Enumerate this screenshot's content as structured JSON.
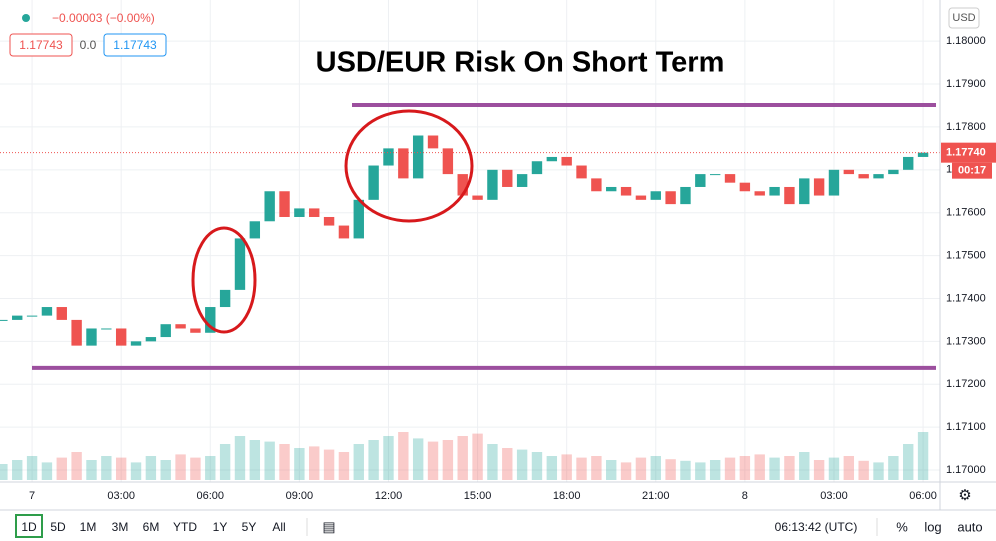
{
  "header": {
    "change": "−0.00003 (−0.00%)",
    "sell": "1.17743",
    "spread": "0.0",
    "buy": "1.17743",
    "currency": "USD"
  },
  "chart_data": {
    "type": "candlestick",
    "title": "USD/EUR Risk On Short Term",
    "x": [
      -1,
      -0.5,
      0,
      0.5,
      1,
      1.5,
      2,
      2.5,
      3,
      3.5,
      4,
      4.5,
      5,
      5.5,
      6,
      6.5,
      7,
      7.5,
      8,
      8.5,
      9,
      9.5,
      10,
      10.5,
      11,
      11.5,
      12,
      12.5,
      13,
      13.5,
      14,
      14.5,
      15,
      15.5,
      16,
      16.5,
      17,
      17.5,
      18,
      18.5,
      19,
      19.5,
      20,
      20.5,
      21,
      21.5,
      22,
      22.5,
      23,
      23.5,
      24,
      24.5,
      25,
      25.5,
      26,
      26.5,
      27,
      27.5,
      28,
      28.5,
      29,
      29.5,
      30
    ],
    "values": [
      1.1735,
      1.1736,
      1.1736,
      1.1738,
      1.1735,
      1.1729,
      1.1733,
      1.1733,
      1.1729,
      1.173,
      1.1731,
      1.1734,
      1.1733,
      1.1732,
      1.1738,
      1.1742,
      1.1754,
      1.1758,
      1.1765,
      1.1759,
      1.1761,
      1.1759,
      1.1757,
      1.1754,
      1.1763,
      1.1771,
      1.1775,
      1.1768,
      1.1778,
      1.1775,
      1.1769,
      1.1764,
      1.1763,
      1.177,
      1.1766,
      1.1769,
      1.1772,
      1.1773,
      1.1771,
      1.1768,
      1.1765,
      1.1766,
      1.1764,
      1.1763,
      1.1765,
      1.1762,
      1.1766,
      1.1769,
      1.1769,
      1.1767,
      1.1765,
      1.1764,
      1.1766,
      1.1762,
      1.1768,
      1.1764,
      1.177,
      1.1769,
      1.1768,
      1.1769,
      1.177,
      1.1773,
      1.1774
    ],
    "volume": [
      20,
      25,
      30,
      22,
      28,
      35,
      25,
      30,
      28,
      22,
      30,
      25,
      32,
      28,
      30,
      45,
      55,
      50,
      48,
      45,
      40,
      42,
      38,
      35,
      45,
      50,
      55,
      60,
      52,
      48,
      50,
      55,
      58,
      45,
      40,
      38,
      35,
      30,
      32,
      28,
      30,
      25,
      22,
      28,
      30,
      26,
      24,
      22,
      25,
      28,
      30,
      32,
      28,
      30,
      35,
      25,
      28,
      30,
      24,
      22,
      30,
      45,
      60
    ],
    "volume_lim": [
      0,
      100
    ],
    "up_color": "#26a69a",
    "down_color": "#ef5350",
    "xlim": [
      -1.08,
      30.57
    ],
    "ylim": [
      1.16972,
      1.18096
    ],
    "xticks": [
      {
        "value": 0,
        "label": "7"
      },
      {
        "value": 3,
        "label": "03:00"
      },
      {
        "value": 6,
        "label": "06:00"
      },
      {
        "value": 9,
        "label": "09:00"
      },
      {
        "value": 12,
        "label": "12:00"
      },
      {
        "value": 15,
        "label": "15:00"
      },
      {
        "value": 18,
        "label": "18:00"
      },
      {
        "value": 21,
        "label": "21:00"
      },
      {
        "value": 24,
        "label": "8"
      },
      {
        "value": 27,
        "label": "03:00"
      },
      {
        "value": 30,
        "label": "06:00"
      }
    ],
    "yticks": [
      {
        "value": 1.18,
        "label": "1.18000"
      },
      {
        "value": 1.179,
        "label": "1.17900"
      },
      {
        "value": 1.178,
        "label": "1.17800"
      },
      {
        "value": 1.177,
        "label": "1.17700"
      },
      {
        "value": 1.176,
        "label": "1.17600"
      },
      {
        "value": 1.175,
        "label": "1.17500"
      },
      {
        "value": 1.174,
        "label": "1.17400"
      },
      {
        "value": 1.173,
        "label": "1.17300"
      },
      {
        "value": 1.172,
        "label": "1.17200"
      },
      {
        "value": 1.171,
        "label": "1.17100"
      },
      {
        "value": 1.17,
        "label": "1.17000"
      }
    ],
    "grid": true,
    "last_price": {
      "value": 1.1774,
      "label": "1.17740"
    },
    "countdown": "00:17",
    "hlines": [
      1.17851,
      1.17238
    ],
    "hline_color": "#9c4f9e"
  },
  "toolbar": {
    "ranges": [
      "1D",
      "5D",
      "1M",
      "3M",
      "6M",
      "YTD",
      "1Y",
      "5Y",
      "All"
    ],
    "time": "06:13:42 (UTC)",
    "options": [
      "%",
      "log",
      "auto"
    ]
  }
}
